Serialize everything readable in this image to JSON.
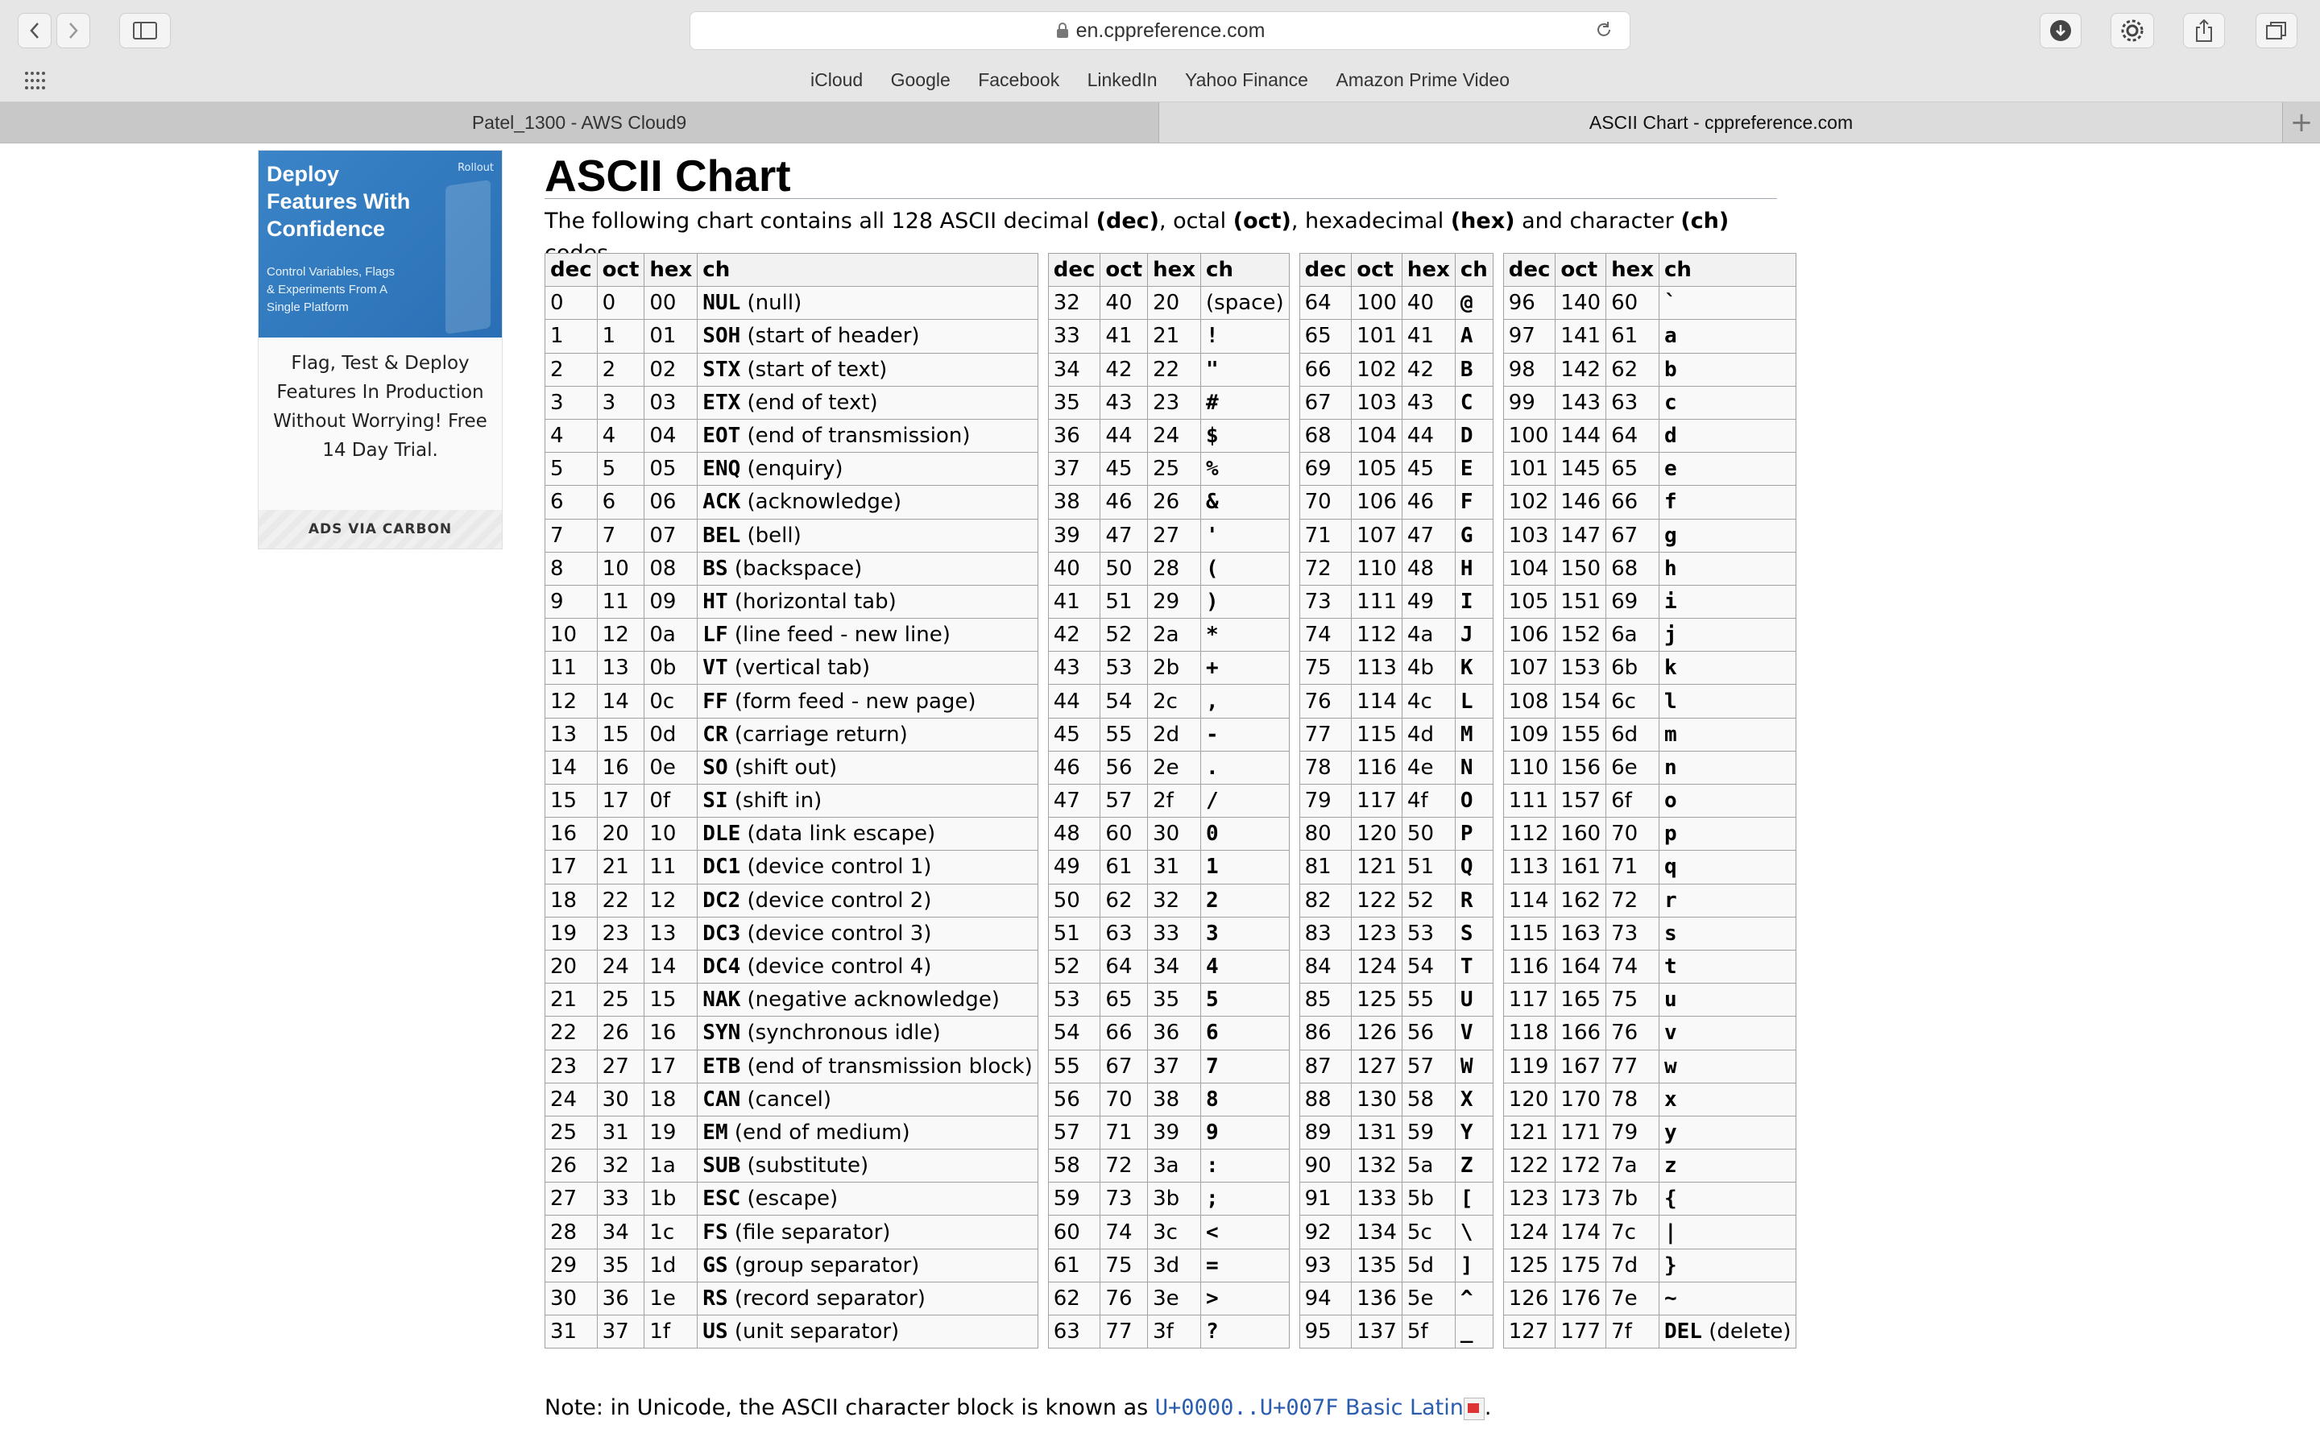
{
  "browser": {
    "url": "en.cppreference.com",
    "favorites": [
      "iCloud",
      "Google",
      "Facebook",
      "LinkedIn",
      "Yahoo Finance",
      "Amazon Prime Video"
    ],
    "tabs": [
      {
        "label": "Patel_1300 - AWS Cloud9"
      },
      {
        "label": "ASCII Chart - cppreference.com"
      }
    ],
    "add_tab": "+"
  },
  "ad": {
    "headline": "Deploy Features With Confidence",
    "subline": "Control Variables, Flags & Experiments From A Single Platform",
    "logo": "Rollout",
    "text": "Flag, Test & Deploy Features In Production Without Worrying! Free 14 Day Trial.",
    "footer": "ADS VIA CARBON"
  },
  "page": {
    "title": "ASCII Chart",
    "intro_parts": [
      "The following chart contains all 128 ASCII decimal ",
      "(dec)",
      ", octal ",
      "(oct)",
      ", hexadecimal ",
      "(hex)",
      " and character ",
      "(ch)",
      " codes."
    ],
    "headers": [
      "dec",
      "oct",
      "hex",
      "ch"
    ],
    "note_text": "Note: in Unicode, the ASCII character block is known as ",
    "note_code": "U+0000..U+007F",
    "note_link": "Basic Latin",
    "note_end": "."
  },
  "table1": [
    [
      "0",
      "0",
      "00",
      "NUL",
      "(null)"
    ],
    [
      "1",
      "1",
      "01",
      "SOH",
      "(start of header)"
    ],
    [
      "2",
      "2",
      "02",
      "STX",
      "(start of text)"
    ],
    [
      "3",
      "3",
      "03",
      "ETX",
      "(end of text)"
    ],
    [
      "4",
      "4",
      "04",
      "EOT",
      "(end of transmission)"
    ],
    [
      "5",
      "5",
      "05",
      "ENQ",
      "(enquiry)"
    ],
    [
      "6",
      "6",
      "06",
      "ACK",
      "(acknowledge)"
    ],
    [
      "7",
      "7",
      "07",
      "BEL",
      "(bell)"
    ],
    [
      "8",
      "10",
      "08",
      "BS",
      "(backspace)"
    ],
    [
      "9",
      "11",
      "09",
      "HT",
      "(horizontal tab)"
    ],
    [
      "10",
      "12",
      "0a",
      "LF",
      "(line feed - new line)"
    ],
    [
      "11",
      "13",
      "0b",
      "VT",
      "(vertical tab)"
    ],
    [
      "12",
      "14",
      "0c",
      "FF",
      "(form feed - new page)"
    ],
    [
      "13",
      "15",
      "0d",
      "CR",
      "(carriage return)"
    ],
    [
      "14",
      "16",
      "0e",
      "SO",
      "(shift out)"
    ],
    [
      "15",
      "17",
      "0f",
      "SI",
      "(shift in)"
    ],
    [
      "16",
      "20",
      "10",
      "DLE",
      "(data link escape)"
    ],
    [
      "17",
      "21",
      "11",
      "DC1",
      "(device control 1)"
    ],
    [
      "18",
      "22",
      "12",
      "DC2",
      "(device control 2)"
    ],
    [
      "19",
      "23",
      "13",
      "DC3",
      "(device control 3)"
    ],
    [
      "20",
      "24",
      "14",
      "DC4",
      "(device control 4)"
    ],
    [
      "21",
      "25",
      "15",
      "NAK",
      "(negative acknowledge)"
    ],
    [
      "22",
      "26",
      "16",
      "SYN",
      "(synchronous idle)"
    ],
    [
      "23",
      "27",
      "17",
      "ETB",
      "(end of transmission block)"
    ],
    [
      "24",
      "30",
      "18",
      "CAN",
      "(cancel)"
    ],
    [
      "25",
      "31",
      "19",
      "EM",
      "(end of medium)"
    ],
    [
      "26",
      "32",
      "1a",
      "SUB",
      "(substitute)"
    ],
    [
      "27",
      "33",
      "1b",
      "ESC",
      "(escape)"
    ],
    [
      "28",
      "34",
      "1c",
      "FS",
      "(file separator)"
    ],
    [
      "29",
      "35",
      "1d",
      "GS",
      "(group separator)"
    ],
    [
      "30",
      "36",
      "1e",
      "RS",
      "(record separator)"
    ],
    [
      "31",
      "37",
      "1f",
      "US",
      "(unit separator)"
    ]
  ],
  "table2": [
    [
      "32",
      "40",
      "20",
      "(space)"
    ],
    [
      "33",
      "41",
      "21",
      "!"
    ],
    [
      "34",
      "42",
      "22",
      "\""
    ],
    [
      "35",
      "43",
      "23",
      "#"
    ],
    [
      "36",
      "44",
      "24",
      "$"
    ],
    [
      "37",
      "45",
      "25",
      "%"
    ],
    [
      "38",
      "46",
      "26",
      "&"
    ],
    [
      "39",
      "47",
      "27",
      "'"
    ],
    [
      "40",
      "50",
      "28",
      "("
    ],
    [
      "41",
      "51",
      "29",
      ")"
    ],
    [
      "42",
      "52",
      "2a",
      "*"
    ],
    [
      "43",
      "53",
      "2b",
      "+"
    ],
    [
      "44",
      "54",
      "2c",
      ","
    ],
    [
      "45",
      "55",
      "2d",
      "-"
    ],
    [
      "46",
      "56",
      "2e",
      "."
    ],
    [
      "47",
      "57",
      "2f",
      "/"
    ],
    [
      "48",
      "60",
      "30",
      "0"
    ],
    [
      "49",
      "61",
      "31",
      "1"
    ],
    [
      "50",
      "62",
      "32",
      "2"
    ],
    [
      "51",
      "63",
      "33",
      "3"
    ],
    [
      "52",
      "64",
      "34",
      "4"
    ],
    [
      "53",
      "65",
      "35",
      "5"
    ],
    [
      "54",
      "66",
      "36",
      "6"
    ],
    [
      "55",
      "67",
      "37",
      "7"
    ],
    [
      "56",
      "70",
      "38",
      "8"
    ],
    [
      "57",
      "71",
      "39",
      "9"
    ],
    [
      "58",
      "72",
      "3a",
      ":"
    ],
    [
      "59",
      "73",
      "3b",
      ";"
    ],
    [
      "60",
      "74",
      "3c",
      "<"
    ],
    [
      "61",
      "75",
      "3d",
      "="
    ],
    [
      "62",
      "76",
      "3e",
      ">"
    ],
    [
      "63",
      "77",
      "3f",
      "?"
    ]
  ],
  "table3": [
    [
      "64",
      "100",
      "40",
      "@"
    ],
    [
      "65",
      "101",
      "41",
      "A"
    ],
    [
      "66",
      "102",
      "42",
      "B"
    ],
    [
      "67",
      "103",
      "43",
      "C"
    ],
    [
      "68",
      "104",
      "44",
      "D"
    ],
    [
      "69",
      "105",
      "45",
      "E"
    ],
    [
      "70",
      "106",
      "46",
      "F"
    ],
    [
      "71",
      "107",
      "47",
      "G"
    ],
    [
      "72",
      "110",
      "48",
      "H"
    ],
    [
      "73",
      "111",
      "49",
      "I"
    ],
    [
      "74",
      "112",
      "4a",
      "J"
    ],
    [
      "75",
      "113",
      "4b",
      "K"
    ],
    [
      "76",
      "114",
      "4c",
      "L"
    ],
    [
      "77",
      "115",
      "4d",
      "M"
    ],
    [
      "78",
      "116",
      "4e",
      "N"
    ],
    [
      "79",
      "117",
      "4f",
      "O"
    ],
    [
      "80",
      "120",
      "50",
      "P"
    ],
    [
      "81",
      "121",
      "51",
      "Q"
    ],
    [
      "82",
      "122",
      "52",
      "R"
    ],
    [
      "83",
      "123",
      "53",
      "S"
    ],
    [
      "84",
      "124",
      "54",
      "T"
    ],
    [
      "85",
      "125",
      "55",
      "U"
    ],
    [
      "86",
      "126",
      "56",
      "V"
    ],
    [
      "87",
      "127",
      "57",
      "W"
    ],
    [
      "88",
      "130",
      "58",
      "X"
    ],
    [
      "89",
      "131",
      "59",
      "Y"
    ],
    [
      "90",
      "132",
      "5a",
      "Z"
    ],
    [
      "91",
      "133",
      "5b",
      "["
    ],
    [
      "92",
      "134",
      "5c",
      "\\"
    ],
    [
      "93",
      "135",
      "5d",
      "]"
    ],
    [
      "94",
      "136",
      "5e",
      "^"
    ],
    [
      "95",
      "137",
      "5f",
      "_"
    ]
  ],
  "table4": [
    [
      "96",
      "140",
      "60",
      "`"
    ],
    [
      "97",
      "141",
      "61",
      "a"
    ],
    [
      "98",
      "142",
      "62",
      "b"
    ],
    [
      "99",
      "143",
      "63",
      "c"
    ],
    [
      "100",
      "144",
      "64",
      "d"
    ],
    [
      "101",
      "145",
      "65",
      "e"
    ],
    [
      "102",
      "146",
      "66",
      "f"
    ],
    [
      "103",
      "147",
      "67",
      "g"
    ],
    [
      "104",
      "150",
      "68",
      "h"
    ],
    [
      "105",
      "151",
      "69",
      "i"
    ],
    [
      "106",
      "152",
      "6a",
      "j"
    ],
    [
      "107",
      "153",
      "6b",
      "k"
    ],
    [
      "108",
      "154",
      "6c",
      "l"
    ],
    [
      "109",
      "155",
      "6d",
      "m"
    ],
    [
      "110",
      "156",
      "6e",
      "n"
    ],
    [
      "111",
      "157",
      "6f",
      "o"
    ],
    [
      "112",
      "160",
      "70",
      "p"
    ],
    [
      "113",
      "161",
      "71",
      "q"
    ],
    [
      "114",
      "162",
      "72",
      "r"
    ],
    [
      "115",
      "163",
      "73",
      "s"
    ],
    [
      "116",
      "164",
      "74",
      "t"
    ],
    [
      "117",
      "165",
      "75",
      "u"
    ],
    [
      "118",
      "166",
      "76",
      "v"
    ],
    [
      "119",
      "167",
      "77",
      "w"
    ],
    [
      "120",
      "170",
      "78",
      "x"
    ],
    [
      "121",
      "171",
      "79",
      "y"
    ],
    [
      "122",
      "172",
      "7a",
      "z"
    ],
    [
      "123",
      "173",
      "7b",
      "{"
    ],
    [
      "124",
      "174",
      "7c",
      "|"
    ],
    [
      "125",
      "175",
      "7d",
      "}"
    ],
    [
      "126",
      "176",
      "7e",
      "~"
    ],
    [
      "127",
      "177",
      "7f",
      "DEL",
      "(delete)"
    ]
  ]
}
